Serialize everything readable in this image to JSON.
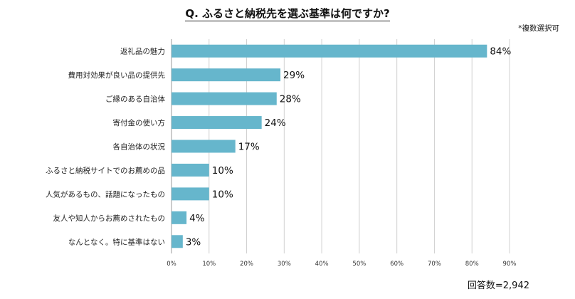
{
  "title": "Q. ふるさと納税先を選ぶ基準は何ですか?",
  "note": "*複数選択可",
  "footer": "回答数=2,942",
  "colors": {
    "bar": "#66b6cc",
    "grid": "#d0d0d0",
    "axis": "#9a9a9a"
  },
  "chart_data": {
    "type": "bar",
    "orientation": "horizontal",
    "categories": [
      "返礼品の魅力",
      "費用対効果が良い品の提供先",
      "ご縁のある自治体",
      "寄付金の使い方",
      "各自治体の状況",
      "ふるさと納税サイトでのお薦めの品",
      "人気があるもの、話題になったもの",
      "友人や知人からお薦めされたもの",
      "なんとなく。特に基準はない"
    ],
    "values": [
      84,
      29,
      28,
      24,
      17,
      10,
      10,
      4,
      3
    ],
    "value_labels": [
      "84%",
      "29%",
      "28%",
      "24%",
      "17%",
      "10%",
      "10%",
      "4%",
      "3%"
    ],
    "xlim": [
      0,
      90
    ],
    "xticks": [
      "0%",
      "10%",
      "20%",
      "30%",
      "40%",
      "50%",
      "60%",
      "70%",
      "80%",
      "90%"
    ],
    "grid": "vertical",
    "title": "Q. ふるさと納税先を選ぶ基準は何ですか?",
    "xlabel": "",
    "ylabel": ""
  }
}
